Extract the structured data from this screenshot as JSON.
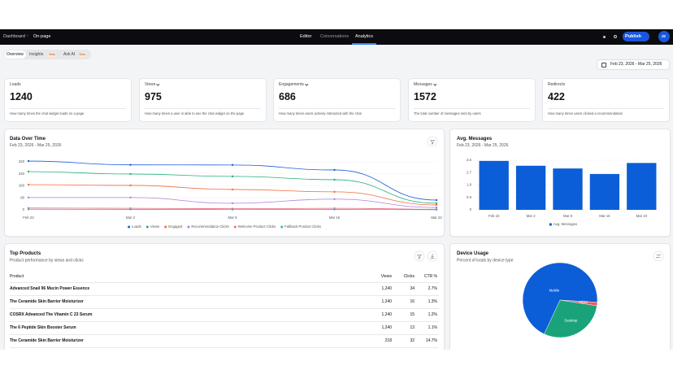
{
  "nav": {
    "breadcrumb": [
      "Dashboard",
      "On-page"
    ],
    "tabs": [
      "Editor",
      "Conversations",
      "Analytics"
    ],
    "publish": "Publish",
    "avatar": "JS"
  },
  "subnav": {
    "tabs": [
      {
        "label": "Overview"
      },
      {
        "label": "Insights",
        "badge": "Beta"
      },
      {
        "label": "Ask AI",
        "badge": "Beta"
      }
    ],
    "date_range": "Feb 23, 2026 - Mar 25, 2026"
  },
  "kpis": [
    {
      "label": "Loads",
      "value": 1240,
      "description": "How many times the chat widget loads on a page"
    },
    {
      "label": "Views",
      "value": 975,
      "description": "How many times a user is able to see the chat widget on the page"
    },
    {
      "label": "Engagements",
      "value": 686,
      "description": "How many times users actively interacted with the chat"
    },
    {
      "label": "Messages",
      "value": 1572,
      "description": "The total number of messages sent by users"
    },
    {
      "label": "Redirects",
      "value": 422,
      "description": "How many times users clicked a recommendation"
    }
  ],
  "chart_data": [
    {
      "type": "line",
      "title": "Data Over Time",
      "subtitle": "Feb 23, 2026 - Mar 25, 2026",
      "categories": [
        "Feb 23",
        "Mar 2",
        "Mar 9",
        "Mar 16",
        "Mar 23"
      ],
      "ylim": [
        0,
        320
      ],
      "yticks": [
        0,
        80,
        160,
        240,
        320
      ],
      "grid": true,
      "legend": "bottom",
      "series": [
        {
          "name": "Loads",
          "color": "#1d5fd6",
          "values": [
            325,
            300,
            299,
            266,
            65
          ]
        },
        {
          "name": "Views",
          "color": "#22b07d",
          "values": [
            255,
            239,
            223,
            201,
            44
          ]
        },
        {
          "name": "Engaged",
          "color": "#f26d3d",
          "values": [
            168,
            163,
            136,
            120,
            33
          ]
        },
        {
          "name": "Recommendation Clicks",
          "color": "#b77ee0",
          "values": [
            82,
            82,
            44,
            71,
            16
          ]
        },
        {
          "name": "Welcome Product Clicks",
          "color": "#f0677a",
          "values": [
            12,
            10,
            8,
            10,
            4
          ]
        },
        {
          "name": "Fallback Product Clicks",
          "color": "#33b5c9",
          "values": [
            4,
            3,
            2,
            3,
            1
          ]
        }
      ]
    },
    {
      "type": "bar",
      "title": "Avg. Messages",
      "subtitle": "Feb 23, 2026 - Mar 25, 2026",
      "categories": [
        "Feb 23",
        "Mar 2",
        "Mar 9",
        "Mar 16",
        "Mar 23"
      ],
      "ylim": [
        0,
        3.6
      ],
      "yticks": [
        0,
        0.9,
        1.8,
        2.7,
        3.6
      ],
      "grid": true,
      "legend": "bottom",
      "series": [
        {
          "name": "Avg. Messages",
          "color": "#0b5ed7",
          "values": [
            3.55,
            3.2,
            3.0,
            2.6,
            3.4
          ]
        }
      ]
    },
    {
      "type": "pie",
      "title": "Device Usage",
      "subtitle": "Percent of loads by device type",
      "categories": [
        "Mobile",
        "Tablet",
        "Desktop"
      ],
      "values": [
        69,
        1.5,
        29.5
      ],
      "colors": [
        "#0b5ed7",
        "#ef5a5a",
        "#1aa37a"
      ]
    }
  ],
  "top_products": {
    "title": "Top Products",
    "subtitle": "Product performance by views and clicks",
    "columns": [
      "Product",
      "Views",
      "Clicks",
      "CTR %"
    ],
    "rows": [
      [
        "Advanced Snail 96 Mucin Power Essence",
        "1,240",
        "34",
        "2.7%"
      ],
      [
        "The Ceramide Skin Barrier Moisturizer",
        "1,240",
        "16",
        "1.3%"
      ],
      [
        "COSRX Advanced The Vitamin C 23 Serum",
        "1,240",
        "15",
        "1.2%"
      ],
      [
        "The 6 Peptide Skin Booster Serum",
        "1,240",
        "13",
        "1.1%"
      ],
      [
        "The Ceramide Skin Barrier Moisturizer",
        "218",
        "32",
        "14.7%"
      ]
    ]
  }
}
